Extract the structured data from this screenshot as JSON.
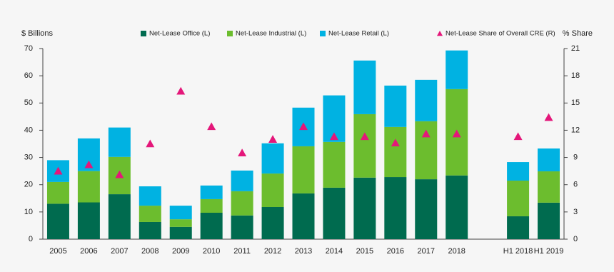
{
  "chart_data": {
    "type": "bar",
    "stacked": true,
    "y_label": "$ Billions",
    "y2_label": "% Share",
    "categories": [
      "2005",
      "2006",
      "2007",
      "2008",
      "2009",
      "2010",
      "2011",
      "2012",
      "2013",
      "2014",
      "2015",
      "2016",
      "2017",
      "2018",
      null,
      "H1 2018",
      "H1 2019"
    ],
    "series": [
      {
        "name": "Net-Lease Office (L)",
        "color": "#006b4f",
        "values": [
          13,
          13.5,
          16.5,
          6.3,
          4.5,
          9.7,
          8.7,
          11.8,
          16.8,
          18.9,
          22.6,
          22.8,
          22,
          23.4,
          null,
          8.4,
          13.4
        ]
      },
      {
        "name": "Net-Lease Industrial (L)",
        "color": "#6cbd2e",
        "values": [
          8,
          11.5,
          13.7,
          6,
          2.8,
          5,
          8.9,
          12.3,
          17.3,
          16.8,
          23.3,
          18.4,
          21.3,
          31.7,
          null,
          13.1,
          11.5
        ]
      },
      {
        "name": "Net-Lease Retail (L)",
        "color": "#00b2e2",
        "values": [
          8,
          12,
          10.8,
          7.1,
          5,
          5,
          7.6,
          11.1,
          14.2,
          17.1,
          19.7,
          15.2,
          15.2,
          14.2,
          null,
          6.8,
          8.4
        ]
      },
      {
        "name": "Net-Lease Share of Overall CRE (R)",
        "color": "#e4177a",
        "axis": "y2",
        "marker": "triangle",
        "values": [
          7.5,
          8.2,
          7.1,
          10.5,
          16.3,
          12.4,
          9.5,
          11,
          12.4,
          11.3,
          11.3,
          10.6,
          11.6,
          11.6,
          null,
          11.3,
          13.4
        ]
      }
    ],
    "ylim": [
      0,
      70
    ],
    "yticks": [
      0,
      10,
      20,
      30,
      40,
      50,
      60,
      70
    ],
    "y2lim": [
      0,
      21
    ],
    "y2ticks": [
      0,
      3,
      6,
      9,
      12,
      15,
      18,
      21
    ],
    "legend": "top",
    "grid": false
  }
}
